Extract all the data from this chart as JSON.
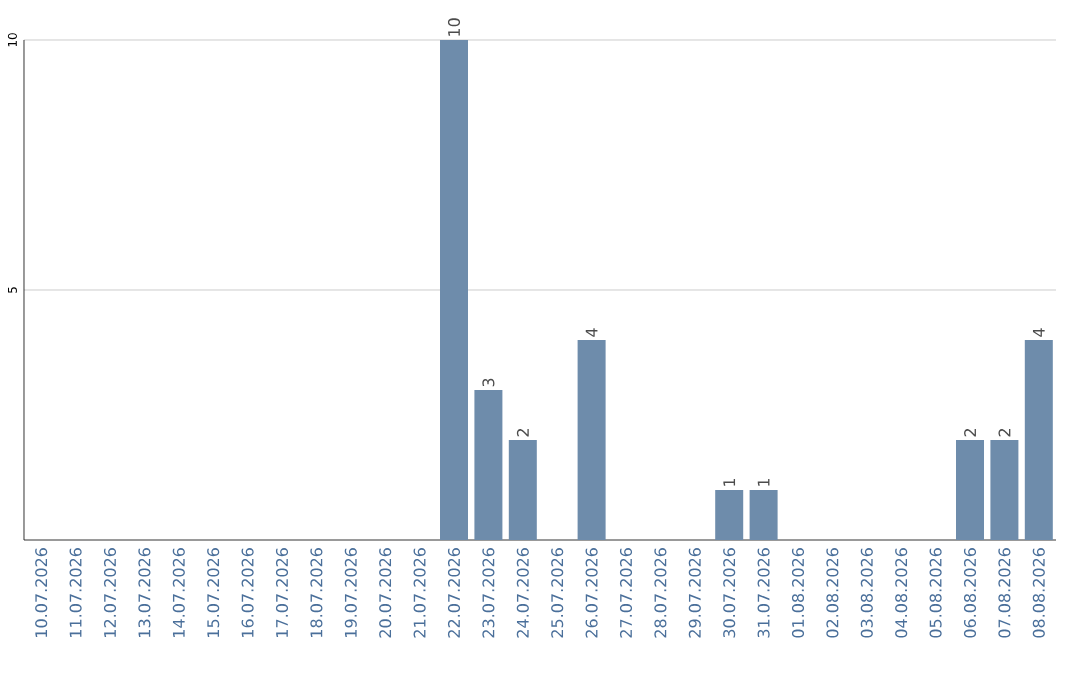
{
  "chart_data": {
    "type": "bar",
    "categories": [
      "10.07.2026",
      "11.07.2026",
      "12.07.2026",
      "13.07.2026",
      "14.07.2026",
      "15.07.2026",
      "16.07.2026",
      "17.07.2026",
      "18.07.2026",
      "19.07.2026",
      "20.07.2026",
      "21.07.2026",
      "22.07.2026",
      "23.07.2026",
      "24.07.2026",
      "25.07.2026",
      "26.07.2026",
      "27.07.2026",
      "28.07.2026",
      "29.07.2026",
      "30.07.2026",
      "31.07.2026",
      "01.08.2026",
      "02.08.2026",
      "03.08.2026",
      "04.08.2026",
      "05.08.2026",
      "06.08.2026",
      "07.08.2026",
      "08.08.2026"
    ],
    "values": [
      0,
      0,
      0,
      0,
      0,
      0,
      0,
      0,
      0,
      0,
      0,
      0,
      10,
      3,
      2,
      0,
      4,
      0,
      0,
      0,
      1,
      1,
      0,
      0,
      0,
      0,
      0,
      2,
      2,
      4
    ],
    "value_labels": [
      null,
      null,
      null,
      null,
      null,
      null,
      null,
      null,
      null,
      null,
      null,
      null,
      "10",
      "3",
      "2",
      null,
      "4",
      null,
      null,
      null,
      "1",
      "1",
      null,
      null,
      null,
      null,
      null,
      "2",
      "2",
      "4"
    ],
    "color": "#6e8cab",
    "ylim": [
      0,
      10
    ],
    "yticks": [
      5,
      10
    ],
    "grid": "y"
  }
}
